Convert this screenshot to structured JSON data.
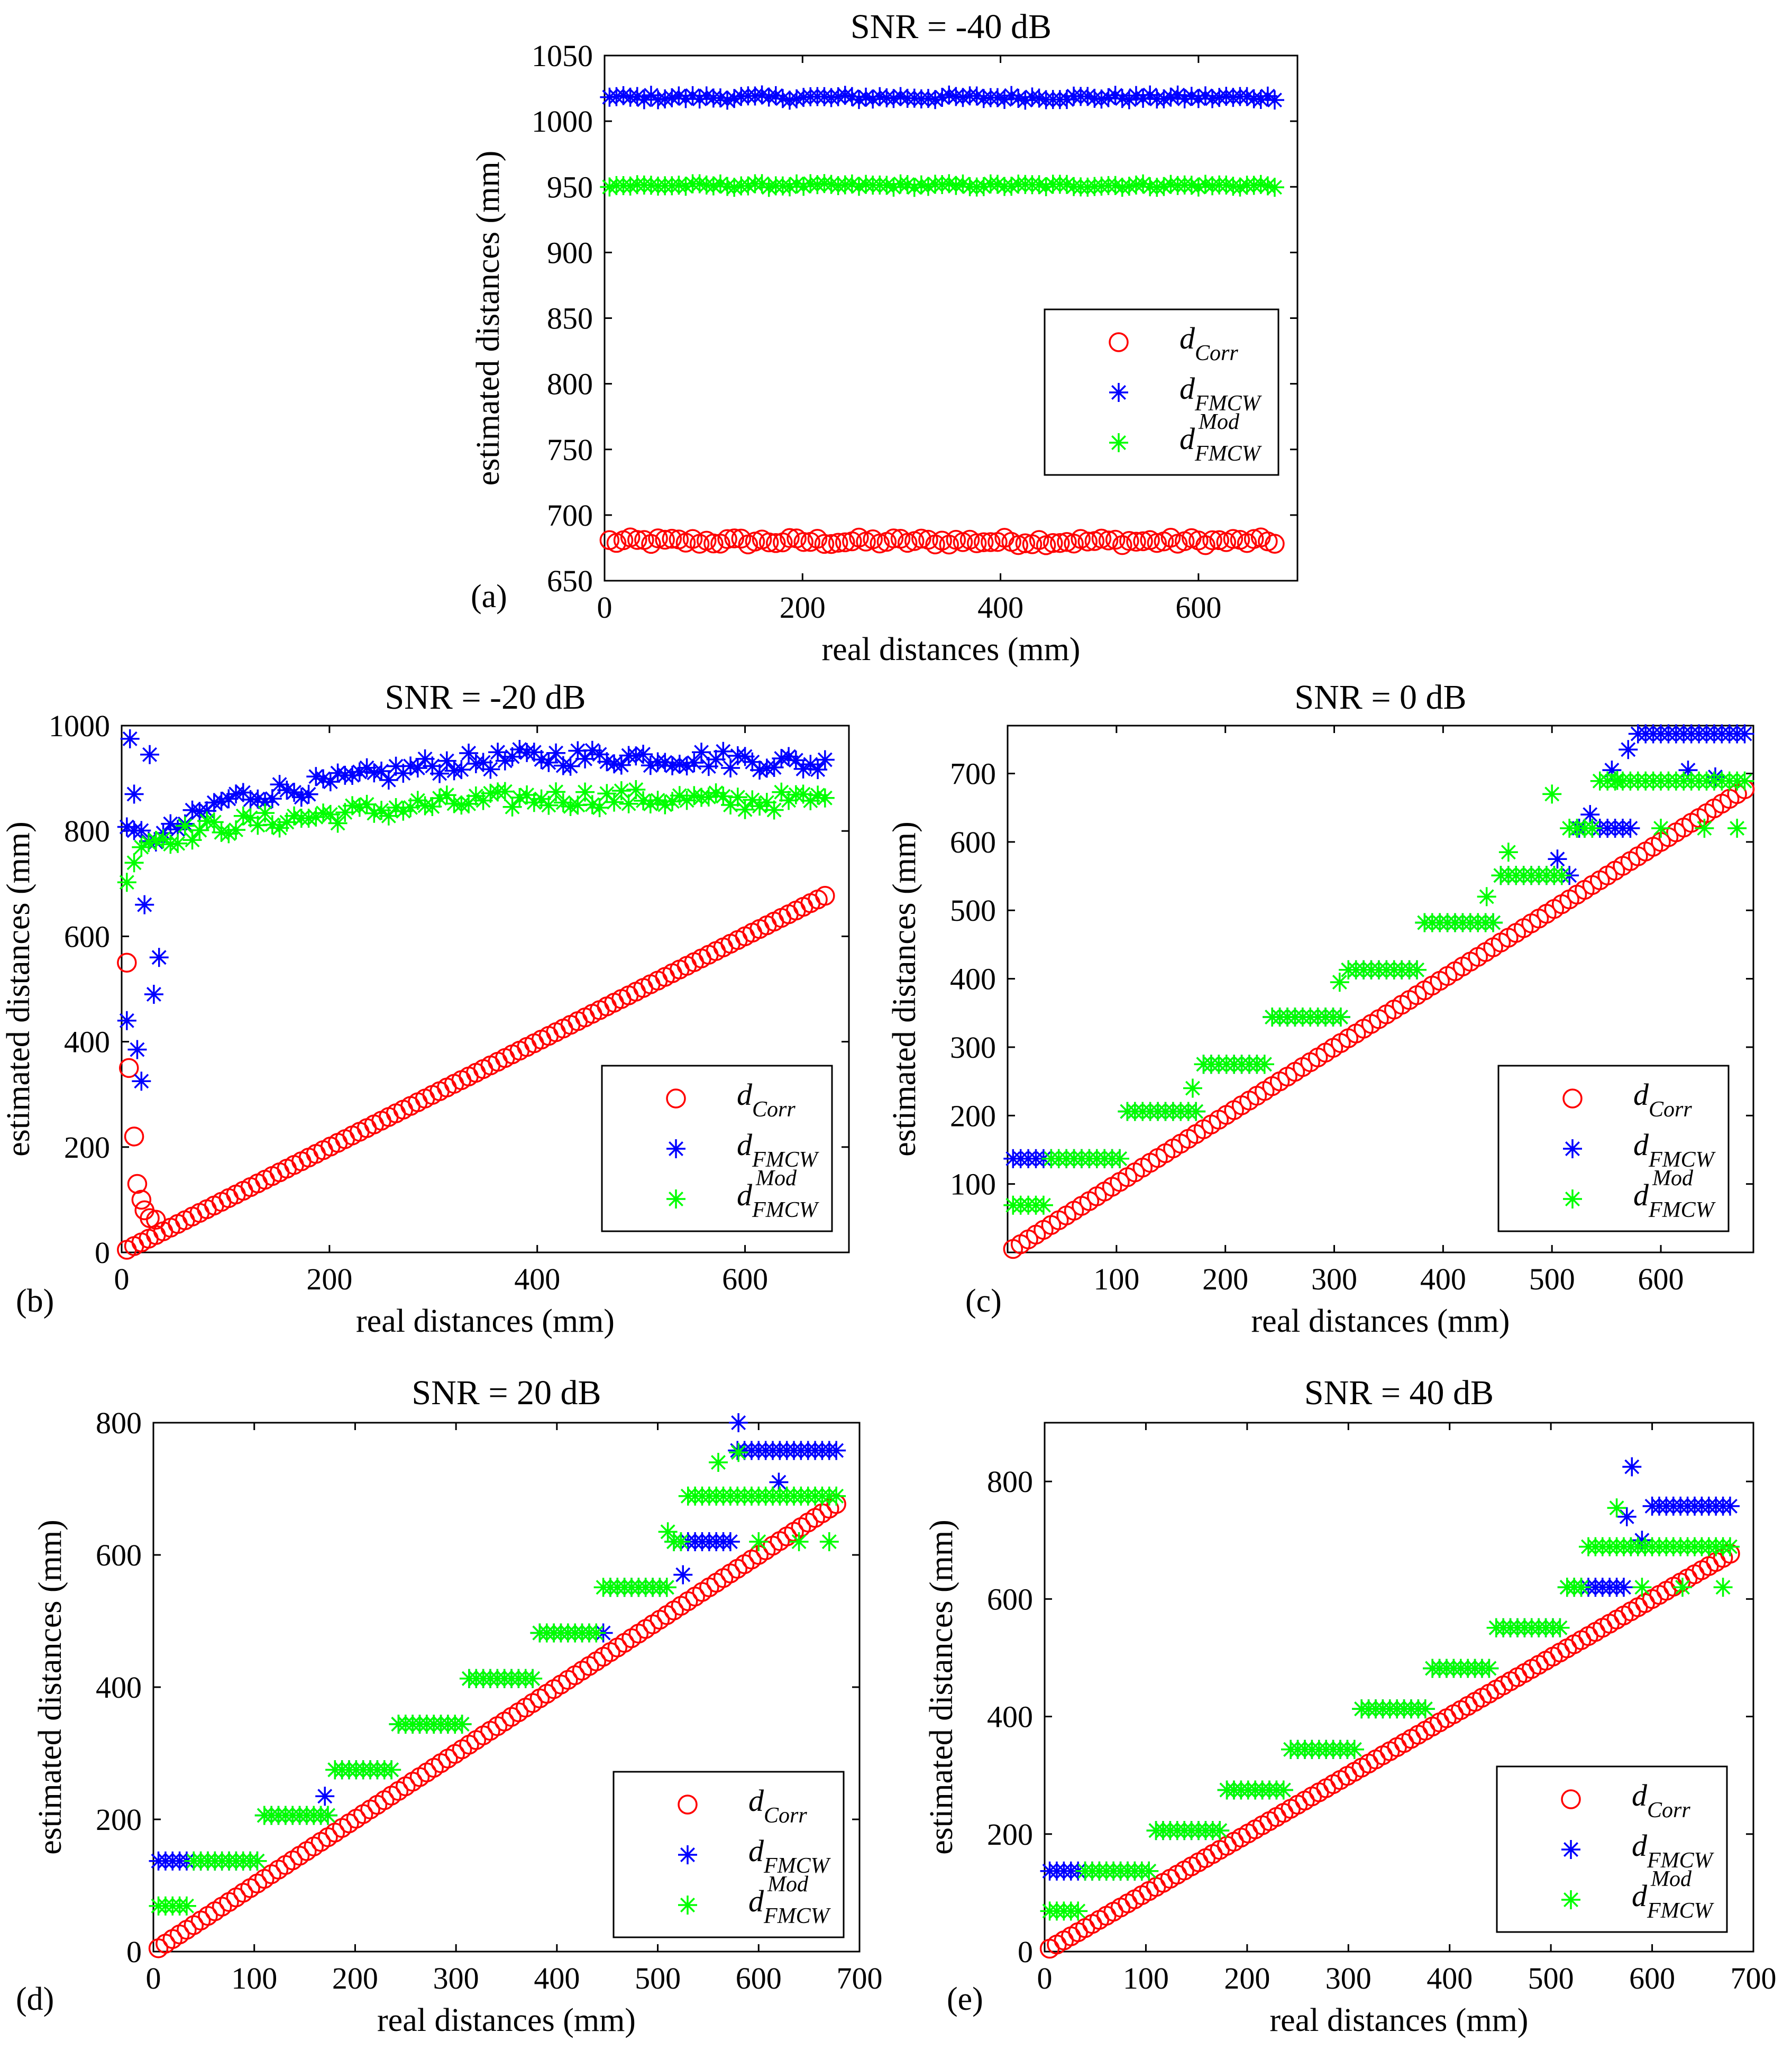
{
  "figure": {
    "panels": [
      "a",
      "b",
      "c",
      "d",
      "e"
    ]
  },
  "legend": {
    "corr": {
      "base": "d",
      "sub": "Corr"
    },
    "fmcw": {
      "base": "d",
      "sub": "FMCW"
    },
    "fmcw_mod": {
      "base": "d",
      "sub": "FMCW",
      "sup": "Mod"
    }
  },
  "colors": {
    "corr": "#ff0000",
    "fmcw": "#0000ff",
    "fmcw_mod": "#00ff00"
  },
  "chart_data": [
    {
      "id": "a",
      "type": "scatter",
      "panel_label": "(a)",
      "title": "SNR = -40 dB",
      "xlabel": "real distances (mm)",
      "ylabel": "estimated distances (mm)",
      "xlim": [
        0,
        700
      ],
      "ylim": [
        650,
        1050
      ],
      "xticks": [
        0,
        200,
        400,
        600
      ],
      "yticks": [
        650,
        700,
        750,
        800,
        850,
        900,
        950,
        1000,
        1050
      ],
      "legend_position": "bottom-right",
      "x": {
        "start": 5,
        "end": 680,
        "step": 7
      },
      "series": [
        {
          "name": "d_Corr",
          "marker": "circle",
          "pattern": "constant",
          "level": 680,
          "jitter": 3
        },
        {
          "name": "d_FMCW",
          "marker": "star",
          "pattern": "constant",
          "level": 1018,
          "jitter": 2
        },
        {
          "name": "d_FMCW^Mod",
          "marker": "star",
          "pattern": "constant",
          "level": 951,
          "jitter": 1.5
        }
      ]
    },
    {
      "id": "b",
      "type": "scatter",
      "panel_label": "(b)",
      "title": "SNR = -20 dB",
      "xlabel": "real distances (mm)",
      "ylabel": "estimated distances (mm)",
      "xlim": [
        0,
        700
      ],
      "ylim": [
        0,
        1000
      ],
      "xticks": [
        0,
        200,
        400,
        600
      ],
      "yticks": [
        0,
        200,
        400,
        600,
        800,
        1000
      ],
      "legend_position": "bottom-right",
      "x": {
        "start": 5,
        "end": 680,
        "step": 7
      },
      "series": [
        {
          "name": "d_Corr",
          "marker": "circle",
          "pattern": "linear",
          "slope": 1,
          "offset": 0,
          "overrides": [
            [
              5,
              550
            ],
            [
              7,
              350
            ],
            [
              12,
              220
            ],
            [
              15,
              130
            ],
            [
              19,
              100
            ],
            [
              22,
              80
            ],
            [
              27,
              65
            ],
            [
              33,
              62
            ]
          ]
        },
        {
          "name": "d_FMCW",
          "marker": "star",
          "pattern": "curve",
          "curve": [
            [
              40,
              790
            ],
            [
              100,
              860
            ],
            [
              200,
              890
            ],
            [
              300,
              925
            ],
            [
              400,
              940
            ],
            [
              500,
              940
            ],
            [
              600,
              935
            ],
            [
              680,
              925
            ]
          ],
          "jitter": 18,
          "overrides": [
            [
              5,
              440
            ],
            [
              8,
              975
            ],
            [
              12,
              870
            ],
            [
              15,
              385
            ],
            [
              19,
              325
            ],
            [
              22,
              660
            ],
            [
              27,
              945
            ],
            [
              31,
              490
            ],
            [
              36,
              560
            ]
          ]
        },
        {
          "name": "d_FMCW^Mod",
          "marker": "star",
          "pattern": "curve",
          "curve": [
            [
              5,
              720
            ],
            [
              20,
              780
            ],
            [
              100,
              810
            ],
            [
              200,
              830
            ],
            [
              300,
              850
            ],
            [
              400,
              862
            ],
            [
              500,
              862
            ],
            [
              600,
              855
            ],
            [
              680,
              860
            ]
          ],
          "jitter": 18
        }
      ]
    },
    {
      "id": "c",
      "type": "scatter",
      "panel_label": "(c)",
      "title": "SNR = 0 dB",
      "xlabel": "real distances (mm)",
      "ylabel": "estimated distances (mm)",
      "xlim": [
        0,
        685
      ],
      "ylim": [
        0,
        770
      ],
      "xticks": [
        100,
        200,
        300,
        400,
        500,
        600
      ],
      "yticks": [
        100,
        200,
        300,
        400,
        500,
        600,
        700
      ],
      "legend_position": "bottom-right",
      "x": {
        "start": 5,
        "end": 680,
        "step": 7
      },
      "series": [
        {
          "name": "d_Corr",
          "marker": "circle",
          "pattern": "linear",
          "slope": 1,
          "offset": 0
        },
        {
          "name": "d_FMCW",
          "marker": "star",
          "pattern": "staircase",
          "jitter": 0,
          "steps": [
            [
              0,
              137
            ],
            [
              105,
              206
            ],
            [
              175,
              275
            ],
            [
              240,
              344
            ],
            [
              310,
              413
            ],
            [
              380,
              482
            ],
            [
              450,
              551
            ],
            [
              520,
              620
            ],
            [
              575,
              758
            ]
          ],
          "extra": [
            [
              505,
              575
            ],
            [
              525,
              620
            ],
            [
              535,
              640
            ],
            [
              555,
              705
            ],
            [
              570,
              735
            ],
            [
              625,
              705
            ],
            [
              650,
              695
            ]
          ]
        },
        {
          "name": "d_FMCW^Mod",
          "marker": "star",
          "pattern": "staircase",
          "jitter": 0,
          "steps": [
            [
              0,
              69
            ],
            [
              35,
              137
            ],
            [
              105,
              206
            ],
            [
              175,
              275
            ],
            [
              240,
              344
            ],
            [
              310,
              413
            ],
            [
              380,
              482
            ],
            [
              450,
              551
            ],
            [
              510,
              620
            ],
            [
              540,
              689
            ]
          ],
          "extra": [
            [
              170,
              240
            ],
            [
              305,
              395
            ],
            [
              440,
              520
            ],
            [
              460,
              585
            ],
            [
              500,
              670
            ],
            [
              560,
              690
            ],
            [
              600,
              620
            ],
            [
              640,
              620
            ],
            [
              670,
              620
            ]
          ]
        }
      ]
    },
    {
      "id": "d",
      "type": "scatter",
      "panel_label": "(d)",
      "title": "SNR = 20 dB",
      "xlabel": "real distances (mm)",
      "ylabel": "estimated distances (mm)",
      "xlim": [
        0,
        700
      ],
      "ylim": [
        0,
        800
      ],
      "xticks": [
        0,
        100,
        200,
        300,
        400,
        500,
        600,
        700
      ],
      "yticks": [
        0,
        200,
        400,
        600,
        800
      ],
      "legend_position": "bottom-right",
      "x": {
        "start": 5,
        "end": 680,
        "step": 7
      },
      "series": [
        {
          "name": "d_Corr",
          "marker": "circle",
          "pattern": "linear",
          "slope": 1,
          "offset": 0
        },
        {
          "name": "d_FMCW",
          "marker": "star",
          "pattern": "staircase",
          "jitter": 0,
          "steps": [
            [
              0,
              137
            ],
            [
              105,
              206
            ],
            [
              175,
              275
            ],
            [
              240,
              344
            ],
            [
              310,
              413
            ],
            [
              380,
              482
            ],
            [
              450,
              551
            ],
            [
              515,
              620
            ],
            [
              575,
              758
            ]
          ],
          "extra": [
            [
              170,
              235
            ],
            [
              525,
              570
            ],
            [
              580,
              800
            ],
            [
              620,
              710
            ]
          ]
        },
        {
          "name": "d_FMCW^Mod",
          "marker": "star",
          "pattern": "staircase",
          "jitter": 0,
          "steps": [
            [
              0,
              69
            ],
            [
              35,
              137
            ],
            [
              105,
              206
            ],
            [
              175,
              275
            ],
            [
              240,
              344
            ],
            [
              310,
              413
            ],
            [
              380,
              482
            ],
            [
              445,
              551
            ],
            [
              510,
              620
            ],
            [
              530,
              689
            ]
          ],
          "extra": [
            [
              510,
              635
            ],
            [
              560,
              740
            ],
            [
              580,
              755
            ],
            [
              600,
              620
            ],
            [
              640,
              620
            ],
            [
              670,
              620
            ]
          ]
        }
      ]
    },
    {
      "id": "e",
      "type": "scatter",
      "panel_label": "(e)",
      "title": "SNR = 40 dB",
      "xlabel": "real distances (mm)",
      "ylabel": "estimated distances (mm)",
      "xlim": [
        0,
        700
      ],
      "ylim": [
        0,
        900
      ],
      "xticks": [
        0,
        100,
        200,
        300,
        400,
        500,
        600,
        700
      ],
      "yticks": [
        0,
        200,
        400,
        600,
        800
      ],
      "legend_position": "bottom-right",
      "x": {
        "start": 5,
        "end": 680,
        "step": 7
      },
      "series": [
        {
          "name": "d_Corr",
          "marker": "circle",
          "pattern": "linear",
          "slope": 1,
          "offset": 0
        },
        {
          "name": "d_FMCW",
          "marker": "star",
          "pattern": "staircase",
          "jitter": 0,
          "steps": [
            [
              0,
              137
            ],
            [
              105,
              206
            ],
            [
              175,
              275
            ],
            [
              240,
              344
            ],
            [
              310,
              413
            ],
            [
              380,
              482
            ],
            [
              445,
              551
            ],
            [
              515,
              620
            ],
            [
              575,
              689
            ],
            [
              600,
              758
            ]
          ],
          "extra": [
            [
              575,
              740
            ],
            [
              580,
              825
            ],
            [
              590,
              700
            ]
          ]
        },
        {
          "name": "d_FMCW^Mod",
          "marker": "star",
          "pattern": "staircase",
          "jitter": 0,
          "steps": [
            [
              0,
              69
            ],
            [
              35,
              137
            ],
            [
              105,
              206
            ],
            [
              175,
              275
            ],
            [
              240,
              344
            ],
            [
              310,
              413
            ],
            [
              380,
              482
            ],
            [
              445,
              551
            ],
            [
              515,
              620
            ],
            [
              535,
              689
            ]
          ],
          "extra": [
            [
              565,
              755
            ],
            [
              590,
              620
            ],
            [
              630,
              620
            ],
            [
              670,
              620
            ]
          ]
        }
      ]
    }
  ]
}
